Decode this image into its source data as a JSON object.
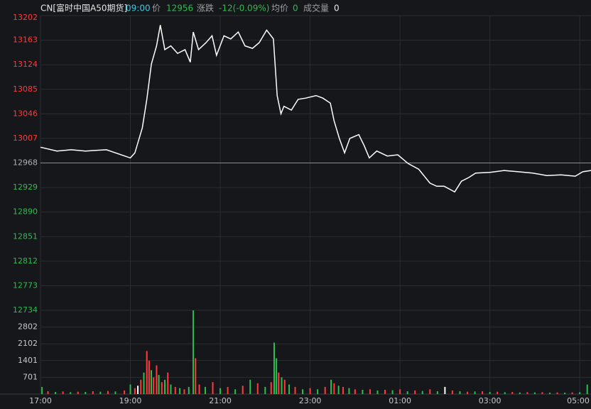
{
  "header": {
    "symbol": "CN[富时中国A50期货]",
    "time": "09:00",
    "price_label": "价",
    "price": "12956",
    "change_label": "涨跌",
    "change": "-12(-0.09%)",
    "avg_label": "均价",
    "avg": "0",
    "volume_label": "成交量",
    "volume": "0"
  },
  "chart_data": [
    {
      "type": "line",
      "color": "#ffffff",
      "up_color": "#ff3b3b",
      "down_color": "#2ebd4e",
      "ref_color": "#b0b0b0",
      "ref_line": 12968,
      "xlim": [
        0,
        735
      ],
      "xticks": [
        {
          "value": 0,
          "label": "17:00"
        },
        {
          "value": 120,
          "label": "19:00"
        },
        {
          "value": 240,
          "label": "21:00"
        },
        {
          "value": 360,
          "label": "23:00"
        },
        {
          "value": 480,
          "label": "01:00"
        },
        {
          "value": 600,
          "label": "03:00"
        },
        {
          "value": 720,
          "label": "05:00"
        }
      ],
      "ylim": [
        12734,
        13202
      ],
      "yticks": [
        13202,
        13163,
        13124,
        13085,
        13046,
        13007,
        12968,
        12929,
        12890,
        12851,
        12812,
        12773,
        12734
      ],
      "x": [
        0,
        22,
        41,
        60,
        88,
        120,
        126,
        136,
        142,
        148,
        155,
        160,
        166,
        174,
        183,
        193,
        200,
        204,
        211,
        221,
        229,
        235,
        245,
        254,
        264,
        273,
        283,
        292,
        302,
        311,
        316,
        321,
        325,
        335,
        344,
        354,
        368,
        377,
        387,
        392,
        399,
        406,
        413,
        425,
        432,
        439,
        449,
        463,
        477,
        491,
        505,
        520,
        529,
        539,
        553,
        562,
        572,
        581,
        600,
        619,
        638,
        657,
        676,
        695,
        714,
        724,
        735
      ],
      "values": [
        12993,
        12987,
        12989,
        12987,
        12989,
        12976,
        12984,
        13024,
        13069,
        13125,
        13154,
        13187,
        13148,
        13154,
        13142,
        13148,
        13128,
        13176,
        13148,
        13159,
        13170,
        13139,
        13170,
        13165,
        13176,
        13154,
        13150,
        13159,
        13179,
        13165,
        13075,
        13046,
        13058,
        13052,
        13069,
        13071,
        13075,
        13071,
        13063,
        13035,
        13007,
        12984,
        13007,
        13013,
        12996,
        12976,
        12987,
        12979,
        12981,
        12967,
        12958,
        12936,
        12931,
        12931,
        12922,
        12939,
        12945,
        12952,
        12953,
        12956,
        12954,
        12952,
        12948,
        12949,
        12947,
        12954,
        12956
      ]
    },
    {
      "type": "bar",
      "label_color": "#c8c8c8",
      "xlim": [
        0,
        735
      ],
      "ylim": [
        0,
        3503
      ],
      "yticks": [
        701,
        1401,
        2102,
        2802
      ],
      "x": [
        2,
        10,
        20,
        30,
        40,
        50,
        60,
        70,
        80,
        90,
        100,
        112,
        120,
        126,
        130,
        134,
        138,
        142,
        145,
        148,
        151,
        155,
        158,
        162,
        166,
        170,
        174,
        180,
        186,
        192,
        198,
        204,
        207,
        212,
        220,
        230,
        240,
        250,
        260,
        270,
        280,
        290,
        300,
        308,
        312,
        315,
        318,
        322,
        326,
        332,
        340,
        350,
        360,
        370,
        380,
        388,
        392,
        398,
        404,
        412,
        420,
        430,
        440,
        450,
        460,
        470,
        480,
        490,
        500,
        510,
        520,
        530,
        540,
        550,
        560,
        570,
        580,
        590,
        600,
        610,
        620,
        630,
        640,
        650,
        660,
        670,
        680,
        690,
        700,
        710,
        720,
        730
      ],
      "values": [
        300,
        120,
        90,
        110,
        80,
        100,
        90,
        120,
        100,
        130,
        110,
        150,
        400,
        250,
        350,
        600,
        900,
        1800,
        1400,
        1000,
        700,
        1200,
        800,
        500,
        600,
        900,
        400,
        300,
        250,
        200,
        300,
        3500,
        1500,
        400,
        300,
        500,
        250,
        300,
        200,
        350,
        600,
        450,
        300,
        500,
        2150,
        1500,
        900,
        700,
        600,
        400,
        300,
        200,
        250,
        200,
        300,
        600,
        450,
        350,
        300,
        250,
        200,
        180,
        200,
        150,
        180,
        160,
        200,
        120,
        150,
        130,
        200,
        120,
        300,
        150,
        120,
        100,
        110,
        120,
        90,
        100,
        80,
        90,
        70,
        80,
        70,
        80,
        60,
        70,
        60,
        70,
        80,
        400
      ],
      "colors": [
        "#2ebd4e",
        "#ff3b3b",
        "#2ebd4e",
        "#ff3b3b",
        "#2ebd4e",
        "#ff3b3b",
        "#2ebd4e",
        "#ff3b3b",
        "#2ebd4e",
        "#ff3b3b",
        "#2ebd4e",
        "#ff3b3b",
        "#2ebd4e",
        "#ff3b3b",
        "#ffffff",
        "#ff3b3b",
        "#2ebd4e",
        "#ff3b3b",
        "#ff3b3b",
        "#2ebd4e",
        "#ff3b3b",
        "#ff3b3b",
        "#2ebd4e",
        "#ff3b3b",
        "#2ebd4e",
        "#ff3b3b",
        "#2ebd4e",
        "#ff3b3b",
        "#2ebd4e",
        "#ff3b3b",
        "#2ebd4e",
        "#2ebd4e",
        "#ff3b3b",
        "#ff3b3b",
        "#2ebd4e",
        "#ff3b3b",
        "#2ebd4e",
        "#ff3b3b",
        "#2ebd4e",
        "#ff3b3b",
        "#2ebd4e",
        "#ff3b3b",
        "#2ebd4e",
        "#ff3b3b",
        "#2ebd4e",
        "#2ebd4e",
        "#ff3b3b",
        "#2ebd4e",
        "#ff3b3b",
        "#2ebd4e",
        "#ff3b3b",
        "#2ebd4e",
        "#ff3b3b",
        "#2ebd4e",
        "#ff3b3b",
        "#2ebd4e",
        "#ff3b3b",
        "#2ebd4e",
        "#ff3b3b",
        "#2ebd4e",
        "#ff3b3b",
        "#2ebd4e",
        "#ff3b3b",
        "#2ebd4e",
        "#ff3b3b",
        "#2ebd4e",
        "#ff3b3b",
        "#2ebd4e",
        "#ff3b3b",
        "#2ebd4e",
        "#ff3b3b",
        "#2ebd4e",
        "#ffffff",
        "#ff3b3b",
        "#2ebd4e",
        "#ff3b3b",
        "#2ebd4e",
        "#ff3b3b",
        "#2ebd4e",
        "#ff3b3b",
        "#2ebd4e",
        "#ff3b3b",
        "#2ebd4e",
        "#ff3b3b",
        "#2ebd4e",
        "#ff3b3b",
        "#2ebd4e",
        "#ff3b3b",
        "#2ebd4e",
        "#ff3b3b",
        "#2ebd4e",
        "#2ebd4e"
      ]
    }
  ]
}
